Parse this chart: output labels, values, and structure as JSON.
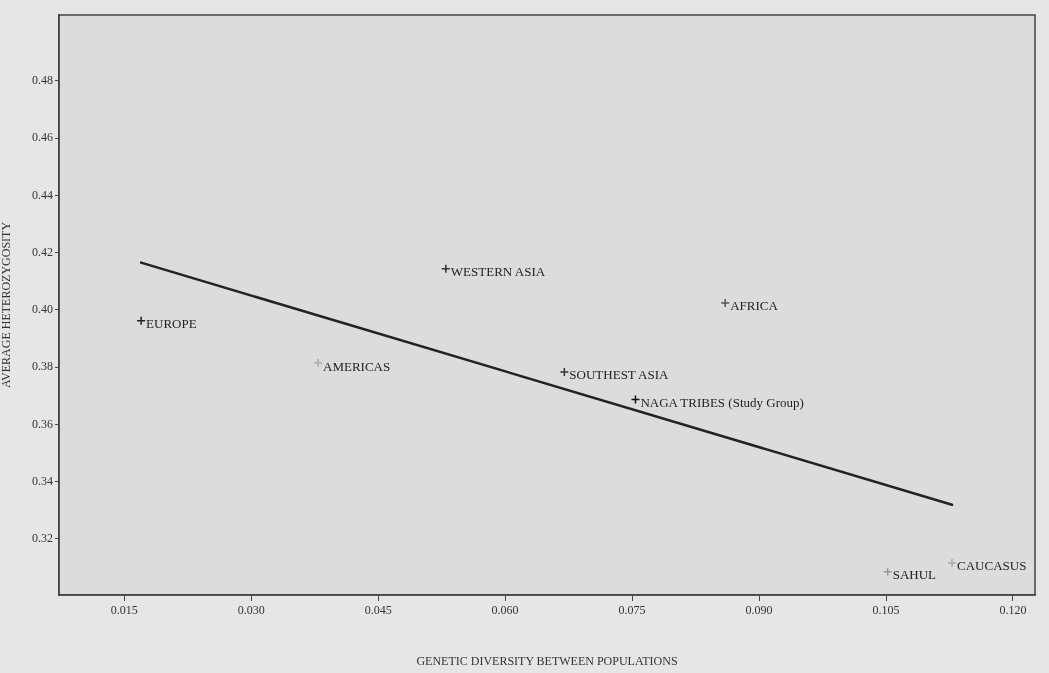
{
  "chart_data": {
    "type": "scatter",
    "xlabel": "GENETIC DIVERSITY BETWEEN POPULATIONS",
    "ylabel": "AVERAGE HETEROZYGOSITY",
    "xlim": [
      0.0073,
      0.1226
    ],
    "ylim": [
      0.3004,
      0.503
    ],
    "xticks": [
      {
        "value": 0.015,
        "label": "0.015"
      },
      {
        "value": 0.03,
        "label": "0.030"
      },
      {
        "value": 0.045,
        "label": "0.045"
      },
      {
        "value": 0.06,
        "label": "0.060"
      },
      {
        "value": 0.075,
        "label": "0.075"
      },
      {
        "value": 0.09,
        "label": "0.090"
      },
      {
        "value": 0.105,
        "label": "0.105"
      },
      {
        "value": 0.12,
        "label": "0.120"
      }
    ],
    "yticks": [
      {
        "value": 0.32,
        "label": "0.32"
      },
      {
        "value": 0.34,
        "label": "0.34"
      },
      {
        "value": 0.36,
        "label": "0.36"
      },
      {
        "value": 0.38,
        "label": "0.38"
      },
      {
        "value": 0.4,
        "label": "0.40"
      },
      {
        "value": 0.42,
        "label": "0.42"
      },
      {
        "value": 0.44,
        "label": "0.44"
      },
      {
        "value": 0.46,
        "label": "0.46"
      },
      {
        "value": 0.48,
        "label": "0.48"
      }
    ],
    "grid": false,
    "legend": false,
    "series": [
      {
        "type": "scatter",
        "marker": "cross",
        "x": [
          0.017,
          0.0379,
          0.053,
          0.067,
          0.0754,
          0.086,
          0.1052,
          0.1128
        ],
        "values": [
          0.3962,
          0.3814,
          0.4144,
          0.3783,
          0.3687,
          0.4024,
          0.3085,
          0.3116
        ],
        "colors": [
          "#222222",
          "#aaaaaa",
          "#333333",
          "#333333",
          "#111111",
          "#555555",
          "#999999",
          "#aaaaaa"
        ]
      },
      {
        "type": "line",
        "marker": "none",
        "line_style": "solid",
        "color": "#222222",
        "x": [
          0.017,
          0.1128
        ],
        "values": [
          0.4165,
          0.3319
        ]
      }
    ],
    "annotations": [
      {
        "text": "EUROPE",
        "x": 0.017,
        "y": 0.3962
      },
      {
        "text": "AMERICAS",
        "x": 0.0379,
        "y": 0.3814
      },
      {
        "text": "WESTERN ASIA",
        "x": 0.053,
        "y": 0.4144
      },
      {
        "text": "SOUTHEST ASIA",
        "x": 0.067,
        "y": 0.3783
      },
      {
        "text": "NAGA TRIBES (Study Group)",
        "x": 0.0754,
        "y": 0.3687
      },
      {
        "text": "AFRICA",
        "x": 0.086,
        "y": 0.4024
      },
      {
        "text": "SAHUL",
        "x": 0.1052,
        "y": 0.3085
      },
      {
        "text": "CAUCASUS",
        "x": 0.1128,
        "y": 0.3116
      }
    ]
  }
}
